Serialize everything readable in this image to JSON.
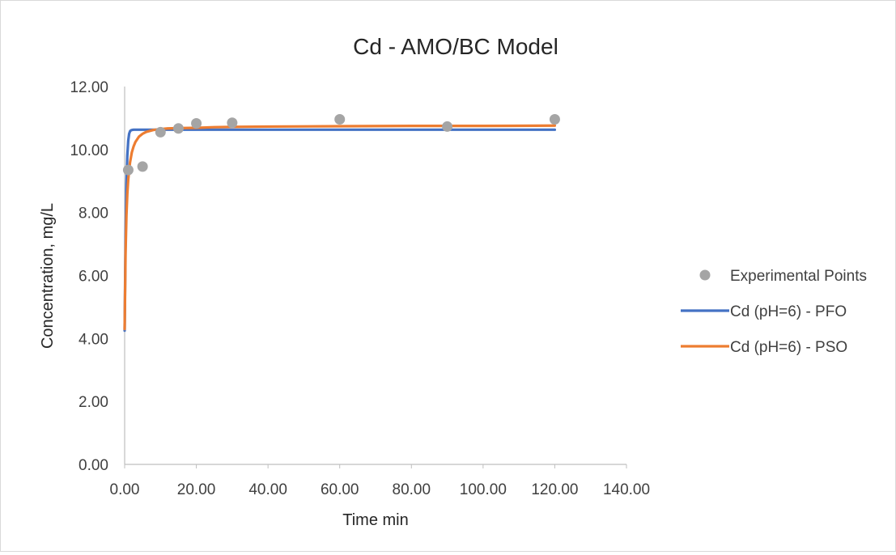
{
  "chart_data": {
    "type": "scatter",
    "title": "Cd - AMO/BC Model",
    "xlabel": "Time min",
    "ylabel": "Concentration, mg/L",
    "xlim": [
      0,
      140
    ],
    "ylim": [
      0,
      12
    ],
    "x_ticks": [
      "0.00",
      "20.00",
      "40.00",
      "60.00",
      "80.00",
      "100.00",
      "120.00",
      "140.00"
    ],
    "y_ticks": [
      "0.00",
      "2.00",
      "4.00",
      "6.00",
      "8.00",
      "10.00",
      "12.00"
    ],
    "grid": false,
    "legend_position": "right",
    "series": [
      {
        "name": "Experimental Points",
        "kind": "markers",
        "color": "#a5a5a5",
        "x": [
          1,
          5,
          10,
          15,
          20,
          30,
          60,
          90,
          120
        ],
        "y": [
          9.35,
          9.46,
          10.55,
          10.67,
          10.83,
          10.85,
          10.96,
          10.73,
          10.96
        ]
      },
      {
        "name": "Cd (pH=6) - PFO",
        "kind": "line",
        "color": "#4472c4",
        "x": [
          0,
          0.25,
          0.5,
          0.75,
          1,
          1.25,
          1.5,
          1.75,
          2,
          2.5,
          3,
          3.5,
          4,
          5,
          6,
          8,
          10,
          15,
          20,
          30,
          40,
          60,
          80,
          100,
          120
        ],
        "y": [
          4.25,
          7.2,
          8.9,
          9.82,
          10.28,
          10.5,
          10.58,
          10.61,
          10.62,
          10.63,
          10.63,
          10.63,
          10.63,
          10.63,
          10.63,
          10.63,
          10.63,
          10.63,
          10.63,
          10.63,
          10.63,
          10.63,
          10.63,
          10.63,
          10.63
        ]
      },
      {
        "name": "Cd (pH=6) - PSO",
        "kind": "line",
        "color": "#ed7d31",
        "x": [
          0,
          0.25,
          0.5,
          0.75,
          1,
          1.5,
          2,
          2.5,
          3,
          4,
          5,
          6,
          8,
          10,
          12,
          15,
          20,
          25,
          30,
          40,
          60,
          80,
          100,
          120
        ],
        "y": [
          4.3,
          6.71,
          7.91,
          8.6,
          9.05,
          9.59,
          9.91,
          10.1,
          10.24,
          10.41,
          10.5,
          10.56,
          10.62,
          10.65,
          10.67,
          10.68,
          10.69,
          10.71,
          10.72,
          10.73,
          10.74,
          10.75,
          10.75,
          10.76
        ]
      }
    ]
  }
}
